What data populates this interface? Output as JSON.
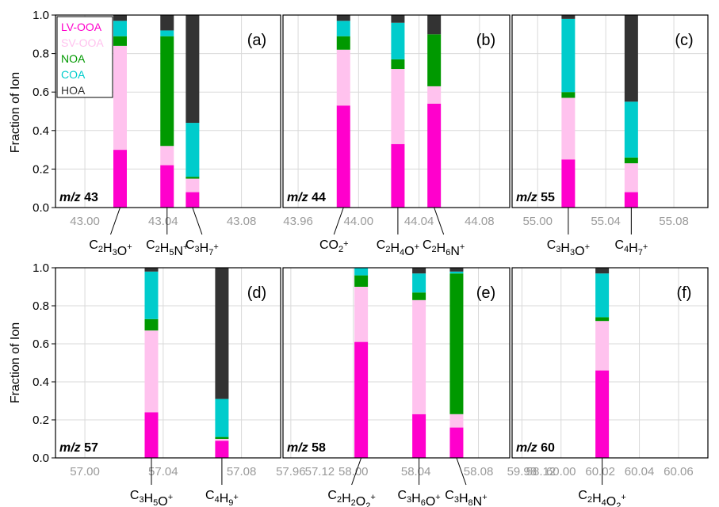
{
  "colors": {
    "LV-OOA": "#ff00cc",
    "SV-OOA": "#ffc2ee",
    "NOA": "#009900",
    "COA": "#00cccc",
    "HOA": "#333333"
  },
  "ylabel": "Fraction of Ion",
  "chart_data": [
    {
      "type": "bar",
      "stacked": true,
      "letter": "(a)",
      "mz_prefix": "m/z",
      "mz_value": "43",
      "xlim": [
        42.985,
        43.1
      ],
      "ylim": [
        0,
        1.0
      ],
      "xticks": [
        "43.00",
        "43.04",
        "43.08"
      ],
      "yticks": [
        "0.0",
        "0.2",
        "0.4",
        "0.6",
        "0.8",
        "1.0"
      ],
      "show_legend": true,
      "legend": [
        "LV-OOA",
        "SV-OOA",
        "NOA",
        "COA",
        "HOA"
      ],
      "ions": [
        {
          "x": 43.018,
          "label": {
            "base": "C",
            "parts": [
              [
                "C",
                "2"
              ],
              [
                "H",
                "3"
              ],
              [
                "O",
                ""
              ]
            ],
            "charge": "+"
          },
          "text": [
            "C",
            "2",
            "H",
            "3",
            "O",
            "+"
          ],
          "values": {
            "LV-OOA": 0.3,
            "SV-OOA": 0.54,
            "NOA": 0.05,
            "COA": 0.08,
            "HOA": 0.03
          }
        },
        {
          "x": 43.042,
          "text": [
            "C",
            "2",
            "H",
            "5",
            "N",
            "+"
          ],
          "values": {
            "LV-OOA": 0.22,
            "SV-OOA": 0.1,
            "NOA": 0.57,
            "COA": 0.03,
            "HOA": 0.08
          }
        },
        {
          "x": 43.055,
          "text": [
            "C",
            "3",
            "H",
            "7",
            "",
            "+"
          ],
          "values": {
            "LV-OOA": 0.08,
            "SV-OOA": 0.07,
            "NOA": 0.01,
            "COA": 0.28,
            "HOA": 0.56
          }
        }
      ]
    },
    {
      "type": "bar",
      "stacked": true,
      "letter": "(b)",
      "mz_prefix": "m/z",
      "mz_value": "44",
      "xlim": [
        43.95,
        44.1
      ],
      "ylim": [
        0,
        1.0
      ],
      "xticks": [
        "43.96",
        "44.00",
        "44.04",
        "44.08"
      ],
      "yticks": [],
      "show_legend": false,
      "ions": [
        {
          "x": 43.99,
          "text": [
            "CO",
            "2",
            "",
            "",
            "",
            "+"
          ],
          "values": {
            "LV-OOA": 0.53,
            "SV-OOA": 0.29,
            "NOA": 0.07,
            "COA": 0.08,
            "HOA": 0.03
          }
        },
        {
          "x": 44.026,
          "text": [
            "C",
            "2",
            "H",
            "4",
            "O",
            "+"
          ],
          "values": {
            "LV-OOA": 0.33,
            "SV-OOA": 0.39,
            "NOA": 0.05,
            "COA": 0.19,
            "HOA": 0.04
          }
        },
        {
          "x": 44.05,
          "text": [
            "C",
            "2",
            "H",
            "6",
            "N",
            "+"
          ],
          "values": {
            "LV-OOA": 0.54,
            "SV-OOA": 0.09,
            "NOA": 0.27,
            "COA": 0.0,
            "HOA": 0.1
          }
        }
      ]
    },
    {
      "type": "bar",
      "stacked": true,
      "letter": "(c)",
      "mz_prefix": "m/z",
      "mz_value": "55",
      "xlim": [
        54.985,
        55.1
      ],
      "ylim": [
        0,
        1.0
      ],
      "xticks": [
        "55.00",
        "55.04",
        "55.08"
      ],
      "yticks": [],
      "show_legend": false,
      "ions": [
        {
          "x": 55.018,
          "text": [
            "C",
            "3",
            "H",
            "3",
            "O",
            "+"
          ],
          "values": {
            "LV-OOA": 0.25,
            "SV-OOA": 0.32,
            "NOA": 0.03,
            "COA": 0.38,
            "HOA": 0.02
          }
        },
        {
          "x": 55.055,
          "text": [
            "C",
            "4",
            "H",
            "7",
            "",
            "+"
          ],
          "values": {
            "LV-OOA": 0.08,
            "SV-OOA": 0.15,
            "NOA": 0.03,
            "COA": 0.29,
            "HOA": 0.45
          }
        }
      ]
    },
    {
      "type": "bar",
      "stacked": true,
      "letter": "(d)",
      "mz_prefix": "m/z",
      "mz_value": "57",
      "xlim": [
        56.985,
        57.1
      ],
      "ylim": [
        0,
        1.0
      ],
      "xticks": [
        "57.00",
        "57.04",
        "57.08",
        "57.12"
      ],
      "yticks": [
        "0.0",
        "0.2",
        "0.4",
        "0.6",
        "0.8",
        "1.0"
      ],
      "show_legend": false,
      "ions": [
        {
          "x": 57.034,
          "text": [
            "C",
            "3",
            "H",
            "5",
            "O",
            "+"
          ],
          "values": {
            "LV-OOA": 0.24,
            "SV-OOA": 0.43,
            "NOA": 0.06,
            "COA": 0.25,
            "HOA": 0.02
          }
        },
        {
          "x": 57.07,
          "text": [
            "C",
            "4",
            "H",
            "9",
            "",
            "+"
          ],
          "values": {
            "LV-OOA": 0.09,
            "SV-OOA": 0.01,
            "NOA": 0.01,
            "COA": 0.2,
            "HOA": 0.69
          }
        }
      ]
    },
    {
      "type": "bar",
      "stacked": true,
      "letter": "(e)",
      "mz_prefix": "m/z",
      "mz_value": "58",
      "xlim": [
        57.955,
        58.1
      ],
      "ylim": [
        0,
        1.0
      ],
      "xticks": [
        "57.96",
        "58.00",
        "58.04",
        "58.08",
        "58.12"
      ],
      "yticks": [],
      "show_legend": false,
      "ions": [
        {
          "x": 58.005,
          "text": [
            "C",
            "2",
            "H",
            "2",
            "O",
            "2+"
          ],
          "values": {
            "LV-OOA": 0.61,
            "SV-OOA": 0.29,
            "NOA": 0.06,
            "COA": 0.04,
            "HOA": 0.0
          }
        },
        {
          "x": 58.042,
          "text": [
            "C",
            "3",
            "H",
            "6",
            "O",
            "+"
          ],
          "values": {
            "LV-OOA": 0.23,
            "SV-OOA": 0.6,
            "NOA": 0.04,
            "COA": 0.1,
            "HOA": 0.03
          }
        },
        {
          "x": 58.066,
          "text": [
            "C",
            "3",
            "H",
            "8",
            "N",
            "+"
          ],
          "values": {
            "LV-OOA": 0.16,
            "SV-OOA": 0.07,
            "NOA": 0.74,
            "COA": 0.01,
            "HOA": 0.02
          }
        }
      ]
    },
    {
      "type": "bar",
      "stacked": true,
      "letter": "(f)",
      "mz_prefix": "m/z",
      "mz_value": "60",
      "xlim": [
        59.975,
        60.075
      ],
      "ylim": [
        0,
        1.0
      ],
      "xticks": [
        "59.98",
        "60.00",
        "60.02",
        "60.04",
        "60.06"
      ],
      "yticks": [],
      "show_legend": false,
      "ions": [
        {
          "x": 60.021,
          "text": [
            "C",
            "2",
            "H",
            "4",
            "O",
            "2+"
          ],
          "values": {
            "LV-OOA": 0.46,
            "SV-OOA": 0.26,
            "NOA": 0.02,
            "COA": 0.23,
            "HOA": 0.03
          }
        }
      ]
    }
  ]
}
